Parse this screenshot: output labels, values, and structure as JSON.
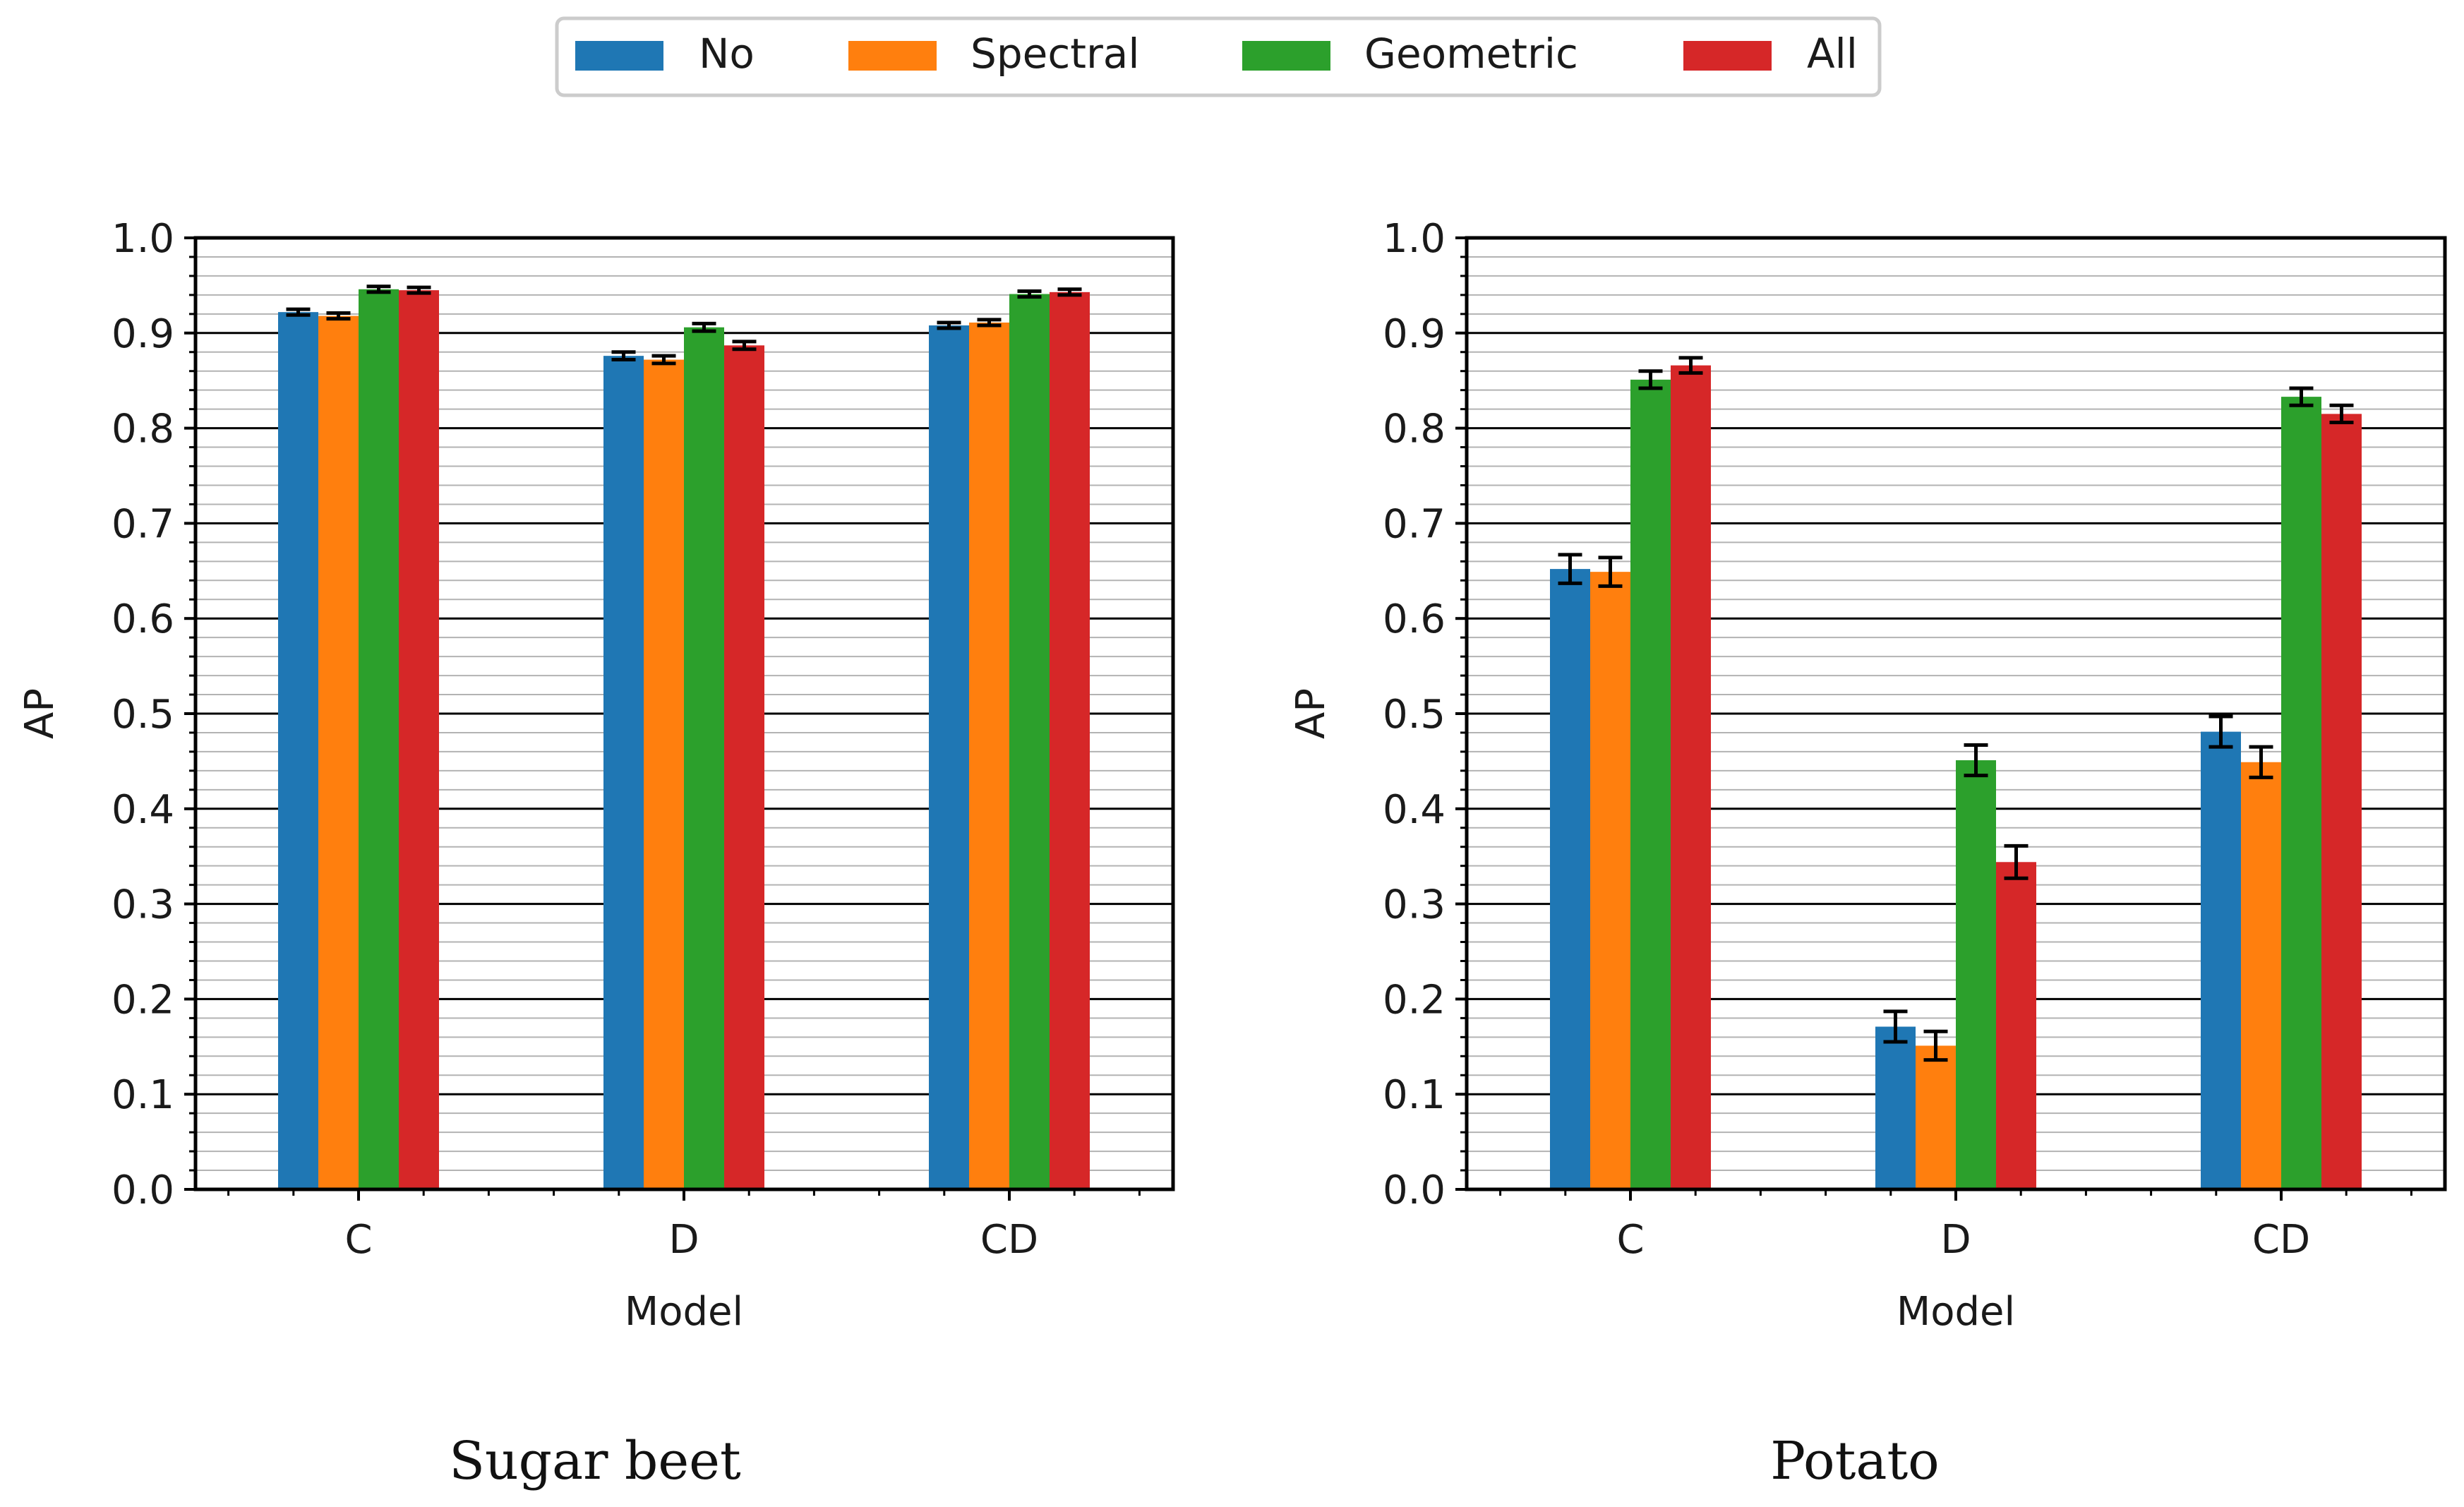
{
  "legend": {
    "items": [
      {
        "name": "No",
        "color": "#1f77b4"
      },
      {
        "name": "Spectral",
        "color": "#ff7f0e"
      },
      {
        "name": "Geometric",
        "color": "#2ca02c"
      },
      {
        "name": "All",
        "color": "#d62728"
      }
    ]
  },
  "chart_data": [
    {
      "type": "bar",
      "caption": "Sugar beet",
      "xlabel": "Model",
      "ylabel": "AP",
      "ylim": [
        0.0,
        1.0
      ],
      "yticks": [
        "0.0",
        "0.1",
        "0.2",
        "0.3",
        "0.4",
        "0.5",
        "0.6",
        "0.7",
        "0.8",
        "0.9",
        "1.0"
      ],
      "categories": [
        "C",
        "D",
        "CD"
      ],
      "grid": "major and minor horizontal",
      "series": [
        {
          "name": "No",
          "values": [
            0.922,
            0.876,
            0.908
          ],
          "errors": [
            0.003,
            0.004,
            0.003
          ]
        },
        {
          "name": "Spectral",
          "values": [
            0.918,
            0.872,
            0.911
          ],
          "errors": [
            0.003,
            0.004,
            0.003
          ]
        },
        {
          "name": "Geometric",
          "values": [
            0.946,
            0.906,
            0.941
          ],
          "errors": [
            0.003,
            0.004,
            0.003
          ]
        },
        {
          "name": "All",
          "values": [
            0.945,
            0.887,
            0.943
          ],
          "errors": [
            0.003,
            0.004,
            0.003
          ]
        }
      ]
    },
    {
      "type": "bar",
      "caption": "Potato",
      "xlabel": "Model",
      "ylabel": "AP",
      "ylim": [
        0.0,
        1.0
      ],
      "yticks": [
        "0.0",
        "0.1",
        "0.2",
        "0.3",
        "0.4",
        "0.5",
        "0.6",
        "0.7",
        "0.8",
        "0.9",
        "1.0"
      ],
      "categories": [
        "C",
        "D",
        "CD"
      ],
      "grid": "major and minor horizontal",
      "series": [
        {
          "name": "No",
          "values": [
            0.652,
            0.171,
            0.481
          ],
          "errors": [
            0.015,
            0.016,
            0.016
          ]
        },
        {
          "name": "Spectral",
          "values": [
            0.649,
            0.151,
            0.449
          ],
          "errors": [
            0.015,
            0.015,
            0.016
          ]
        },
        {
          "name": "Geometric",
          "values": [
            0.851,
            0.451,
            0.833
          ],
          "errors": [
            0.009,
            0.016,
            0.009
          ]
        },
        {
          "name": "All",
          "values": [
            0.866,
            0.344,
            0.815
          ],
          "errors": [
            0.008,
            0.017,
            0.009
          ]
        }
      ]
    }
  ]
}
